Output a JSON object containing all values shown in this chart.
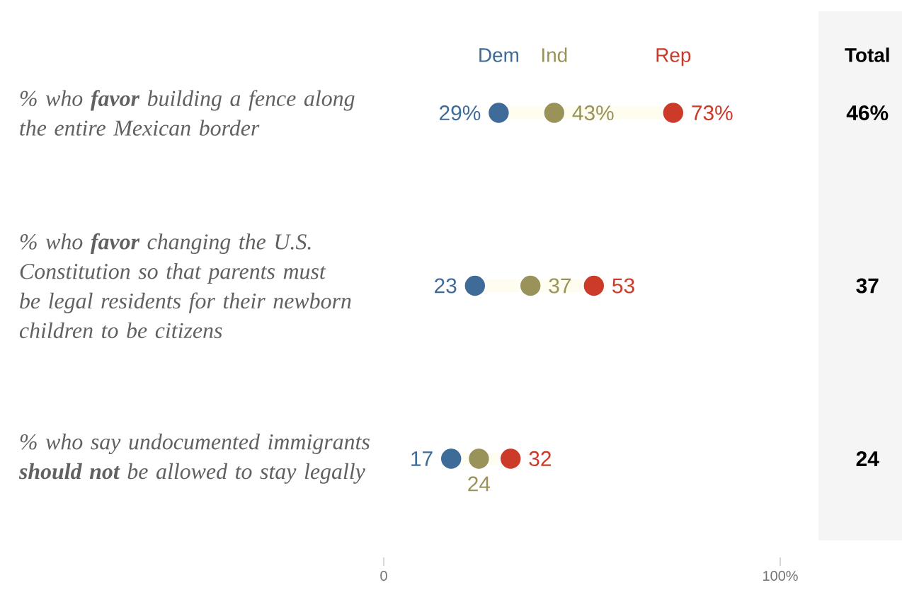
{
  "chart_data": {
    "type": "scatter",
    "orientation": "horizontal",
    "categories": [
      "% who **favor** building a fence along the entire Mexican border",
      "% who **favor** changing the U.S. Constitution so that parents must be legal residents for their newborn children to be citizens",
      "% who say undocumented immigrants **should not** be allowed to stay legally"
    ],
    "series": [
      {
        "name": "Dem",
        "color": "#3f6b98",
        "values": [
          29,
          23,
          17
        ],
        "value_labels": [
          "29%",
          "23",
          "17"
        ]
      },
      {
        "name": "Ind",
        "color": "#99935a",
        "values": [
          43,
          37,
          24
        ],
        "value_labels": [
          "43%",
          "37",
          "24"
        ]
      },
      {
        "name": "Rep",
        "color": "#cc3a2a",
        "values": [
          73,
          53,
          32
        ],
        "value_labels": [
          "73%",
          "53",
          "32"
        ]
      }
    ],
    "xlim": [
      0,
      100
    ],
    "xticks": [
      {
        "value": 0,
        "label": "0"
      },
      {
        "value": 100,
        "label": "100%"
      }
    ],
    "annotations": [
      "Total",
      "46%",
      "37",
      "24"
    ]
  }
}
